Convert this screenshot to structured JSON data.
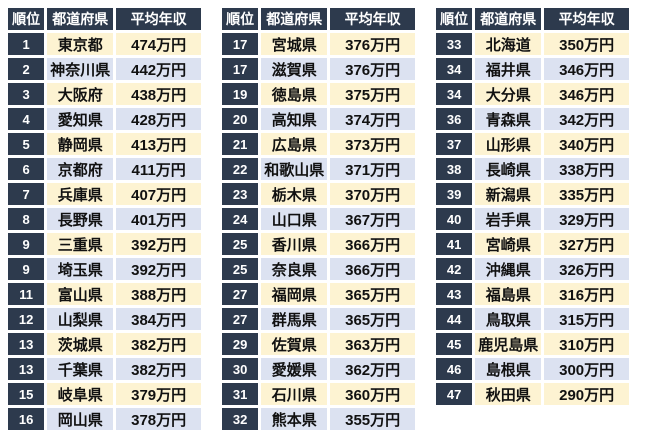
{
  "colors": {
    "header_bg": "#2d3a4d",
    "row_odd_bg": "#fdf3d2",
    "row_even_bg": "#dce2f1",
    "header_text": "#ffffff",
    "cell_text": "#111111"
  },
  "chart_data": {
    "type": "table",
    "title": "",
    "columns": [
      "順位",
      "都道府県",
      "平均年収"
    ],
    "tables": [
      {
        "rows": [
          {
            "rank": "1",
            "pref": "東京都",
            "income": "474万円"
          },
          {
            "rank": "2",
            "pref": "神奈川県",
            "income": "442万円"
          },
          {
            "rank": "3",
            "pref": "大阪府",
            "income": "438万円"
          },
          {
            "rank": "4",
            "pref": "愛知県",
            "income": "428万円"
          },
          {
            "rank": "5",
            "pref": "静岡県",
            "income": "413万円"
          },
          {
            "rank": "6",
            "pref": "京都府",
            "income": "411万円"
          },
          {
            "rank": "7",
            "pref": "兵庫県",
            "income": "407万円"
          },
          {
            "rank": "8",
            "pref": "長野県",
            "income": "401万円"
          },
          {
            "rank": "9",
            "pref": "三重県",
            "income": "392万円"
          },
          {
            "rank": "9",
            "pref": "埼玉県",
            "income": "392万円"
          },
          {
            "rank": "11",
            "pref": "富山県",
            "income": "388万円"
          },
          {
            "rank": "12",
            "pref": "山梨県",
            "income": "384万円"
          },
          {
            "rank": "13",
            "pref": "茨城県",
            "income": "382万円"
          },
          {
            "rank": "13",
            "pref": "千葉県",
            "income": "382万円"
          },
          {
            "rank": "15",
            "pref": "岐阜県",
            "income": "379万円"
          },
          {
            "rank": "16",
            "pref": "岡山県",
            "income": "378万円"
          }
        ]
      },
      {
        "rows": [
          {
            "rank": "17",
            "pref": "宮城県",
            "income": "376万円"
          },
          {
            "rank": "17",
            "pref": "滋賀県",
            "income": "376万円"
          },
          {
            "rank": "19",
            "pref": "徳島県",
            "income": "375万円"
          },
          {
            "rank": "20",
            "pref": "高知県",
            "income": "374万円"
          },
          {
            "rank": "21",
            "pref": "広島県",
            "income": "373万円"
          },
          {
            "rank": "22",
            "pref": "和歌山県",
            "income": "371万円"
          },
          {
            "rank": "23",
            "pref": "栃木県",
            "income": "370万円"
          },
          {
            "rank": "24",
            "pref": "山口県",
            "income": "367万円"
          },
          {
            "rank": "25",
            "pref": "香川県",
            "income": "366万円"
          },
          {
            "rank": "25",
            "pref": "奈良県",
            "income": "366万円"
          },
          {
            "rank": "27",
            "pref": "福岡県",
            "income": "365万円"
          },
          {
            "rank": "27",
            "pref": "群馬県",
            "income": "365万円"
          },
          {
            "rank": "29",
            "pref": "佐賀県",
            "income": "363万円"
          },
          {
            "rank": "30",
            "pref": "愛媛県",
            "income": "362万円"
          },
          {
            "rank": "31",
            "pref": "石川県",
            "income": "360万円"
          },
          {
            "rank": "32",
            "pref": "熊本県",
            "income": "355万円"
          }
        ]
      },
      {
        "rows": [
          {
            "rank": "33",
            "pref": "北海道",
            "income": "350万円"
          },
          {
            "rank": "34",
            "pref": "福井県",
            "income": "346万円"
          },
          {
            "rank": "34",
            "pref": "大分県",
            "income": "346万円"
          },
          {
            "rank": "36",
            "pref": "青森県",
            "income": "342万円"
          },
          {
            "rank": "37",
            "pref": "山形県",
            "income": "340万円"
          },
          {
            "rank": "38",
            "pref": "長崎県",
            "income": "338万円"
          },
          {
            "rank": "39",
            "pref": "新潟県",
            "income": "335万円"
          },
          {
            "rank": "40",
            "pref": "岩手県",
            "income": "329万円"
          },
          {
            "rank": "41",
            "pref": "宮崎県",
            "income": "327万円"
          },
          {
            "rank": "42",
            "pref": "沖縄県",
            "income": "326万円"
          },
          {
            "rank": "43",
            "pref": "福島県",
            "income": "316万円"
          },
          {
            "rank": "44",
            "pref": "鳥取県",
            "income": "315万円"
          },
          {
            "rank": "45",
            "pref": "鹿児島県",
            "income": "310万円"
          },
          {
            "rank": "46",
            "pref": "島根県",
            "income": "300万円"
          },
          {
            "rank": "47",
            "pref": "秋田県",
            "income": "290万円"
          }
        ]
      }
    ]
  }
}
